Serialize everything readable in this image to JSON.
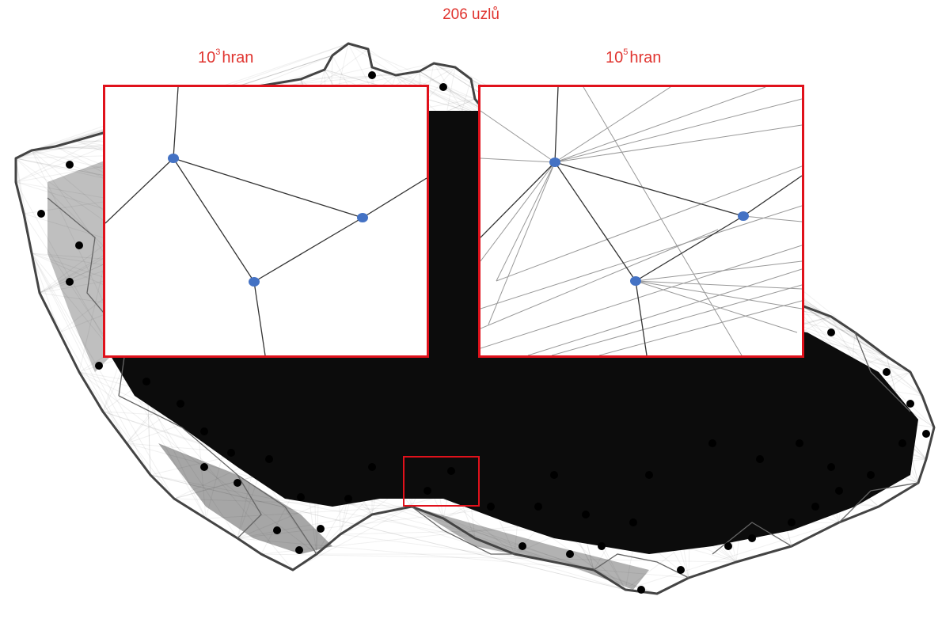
{
  "title": "206 uzlů",
  "insets": {
    "left": {
      "base": "10",
      "exponent": "3",
      "unit": "hran"
    },
    "right": {
      "base": "10",
      "exponent": "5",
      "unit": "hran"
    }
  },
  "colors": {
    "label": "#e0342f",
    "frame": "#e0111b",
    "node_highlight": "#4472c4",
    "node": "#000000",
    "border_line": "#444444"
  }
}
